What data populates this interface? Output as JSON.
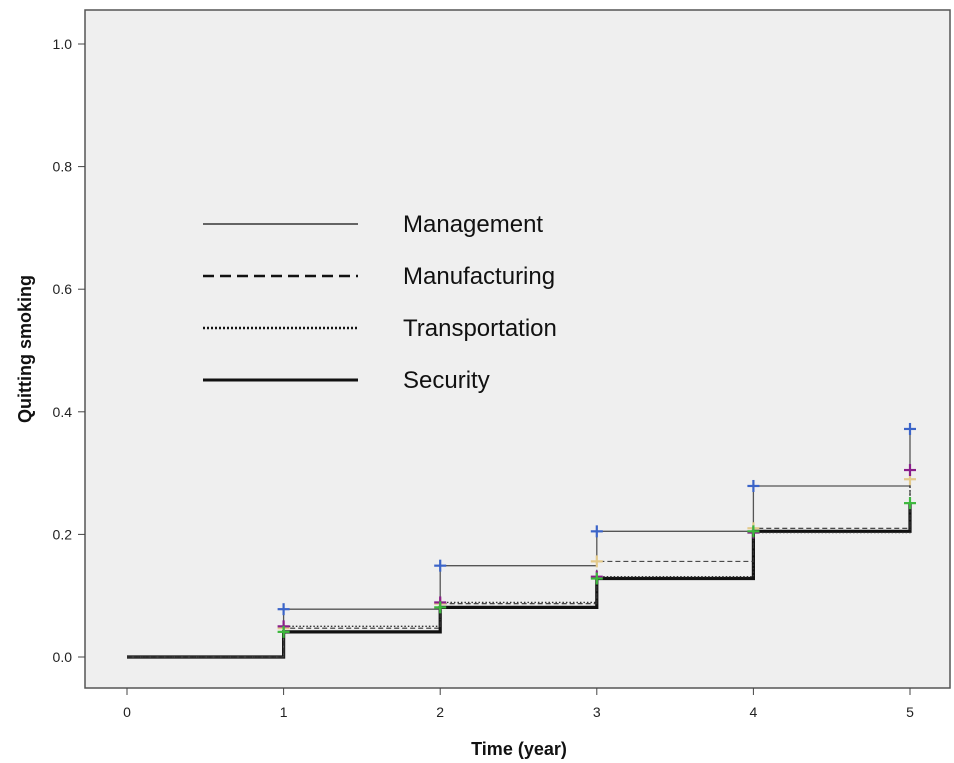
{
  "chart_data": {
    "type": "line",
    "subtype": "step",
    "xlabel": "Time (year)",
    "ylabel": "Quitting smoking",
    "xlim": [
      0,
      5
    ],
    "ylim": [
      0,
      1.0
    ],
    "x_ticks": [
      "0",
      "1",
      "2",
      "3",
      "4",
      "5"
    ],
    "y_ticks": [
      "0.0",
      "0.2",
      "0.4",
      "0.6",
      "0.8",
      "1.0"
    ],
    "grid": false,
    "legend_position": "upper-left",
    "plot_background": "#efefef",
    "x": [
      0,
      1,
      2,
      3,
      4,
      5
    ],
    "series": [
      {
        "name": "Management",
        "line_style": "solid-thin",
        "values": [
          0.0,
          0.078,
          0.149,
          0.205,
          0.279,
          0.372
        ],
        "censor_color": "#3b64c8"
      },
      {
        "name": "Manufacturing",
        "line_style": "dashed",
        "values": [
          0.0,
          0.047,
          0.087,
          0.156,
          0.21,
          0.29
        ],
        "censor_color": "#e3c98a"
      },
      {
        "name": "Transportation",
        "line_style": "dotted",
        "values": [
          0.0,
          0.05,
          0.089,
          0.131,
          0.203,
          0.305
        ],
        "censor_color": "#8a1e8a"
      },
      {
        "name": "Security",
        "line_style": "solid-thick",
        "values": [
          0.0,
          0.041,
          0.081,
          0.128,
          0.205,
          0.251
        ],
        "censor_color": "#3cb83c"
      }
    ]
  }
}
